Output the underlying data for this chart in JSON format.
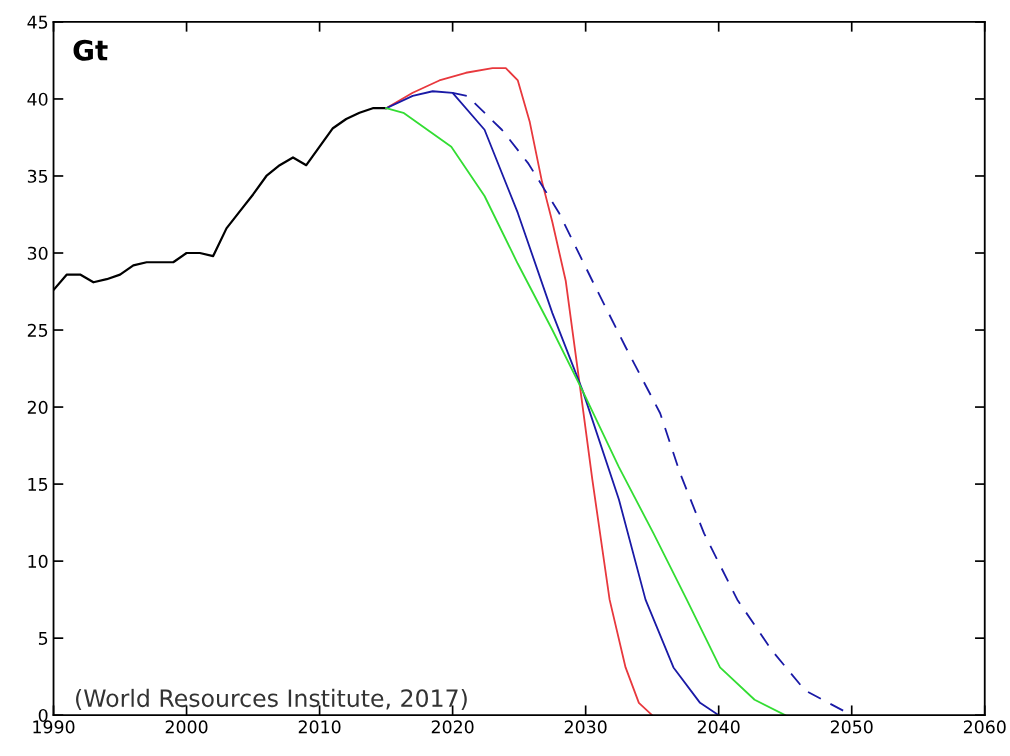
{
  "chart_data": {
    "type": "line",
    "ylabel": "Gt",
    "xlim": [
      1990,
      2060
    ],
    "ylim": [
      0,
      45
    ],
    "xticks": [
      1990,
      2000,
      2010,
      2020,
      2030,
      2040,
      2050,
      2060
    ],
    "yticks": [
      0,
      5,
      10,
      15,
      20,
      25,
      30,
      35,
      40,
      45
    ],
    "grid": false,
    "legend": false,
    "marker": "none",
    "annotations": [
      "(World Resources Institute, 2017)"
    ],
    "series": [
      {
        "color": "#000000",
        "line_style": "solid",
        "x": [
          1990,
          1991,
          1992,
          1993,
          1994,
          1995,
          1996,
          1997,
          1998,
          1999,
          2000,
          2001,
          2002,
          2003,
          2004,
          2005,
          2006,
          2007,
          2008,
          2009,
          2010,
          2011,
          2012,
          2013,
          2014,
          2015
        ],
        "values": [
          27.6,
          28.6,
          28.6,
          28.1,
          28.3,
          28.6,
          29.2,
          29.4,
          29.4,
          29.4,
          30.0,
          30.0,
          29.8,
          31.6,
          32.7,
          33.8,
          35.0,
          35.7,
          36.2,
          35.7,
          36.9,
          38.1,
          38.7,
          39.1,
          39.4,
          39.4
        ]
      },
      {
        "color": "#e8383d",
        "line_style": "solid",
        "x": [
          2015,
          2017,
          2019,
          2021,
          2023,
          2024,
          2024.9,
          2025.8,
          2026.7,
          2027.5,
          2028.5,
          2029.5,
          2030.5,
          2031.8,
          2033,
          2034,
          2035
        ],
        "values": [
          39.4,
          40.4,
          41.2,
          41.7,
          42.0,
          42.0,
          41.2,
          38.5,
          34.7,
          32.0,
          28.2,
          21.8,
          15.3,
          7.5,
          3.1,
          0.8,
          0
        ]
      },
      {
        "color": "#1a1aa6",
        "line_style": "solid",
        "x": [
          2015,
          2017,
          2018.5,
          2020,
          2022.4,
          2024.9,
          2027.5,
          2029.8,
          2032.5,
          2034.5,
          2036.6,
          2038.6,
          2040
        ],
        "values": [
          39.4,
          40.2,
          40.5,
          40.4,
          38.0,
          32.6,
          26.1,
          21.0,
          14.0,
          7.5,
          3.1,
          0.8,
          0
        ]
      },
      {
        "color": "#33dd33",
        "line_style": "solid",
        "x": [
          2015,
          2016.3,
          2019.9,
          2022.4,
          2024.9,
          2027.5,
          2029.8,
          2032.5,
          2035.1,
          2037.6,
          2040.1,
          2042.7,
          2045
        ],
        "values": [
          39.4,
          39.1,
          36.9,
          33.7,
          29.3,
          25.0,
          21.0,
          16.1,
          11.8,
          7.5,
          3.1,
          1.0,
          0
        ]
      },
      {
        "color": "#1a1aa6",
        "line_style": "dashed",
        "x": [
          2020,
          2021.1,
          2023.7,
          2025.7,
          2028,
          2030.5,
          2033,
          2035.6,
          2037.1,
          2038.9,
          2041.4,
          2044,
          2046.5,
          2050
        ],
        "values": [
          40.4,
          40.2,
          38.0,
          35.8,
          32.6,
          28.2,
          23.9,
          19.6,
          15.7,
          11.8,
          7.5,
          4.2,
          1.6,
          0
        ]
      }
    ]
  }
}
